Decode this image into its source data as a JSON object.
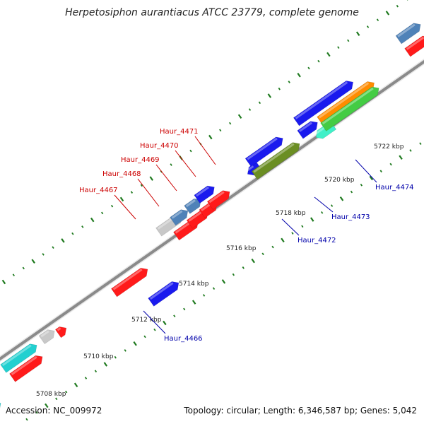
{
  "title": "Herpetosiphon aurantiacus ATCC 23779, complete genome",
  "footer": {
    "accession": "Accession: NC_009972",
    "topology": "Topology: circular; Length: 6,346,587 bp; Genes: 5,042"
  },
  "colors": {
    "backbone": "#8a8a8a",
    "tick": "#1f7a1f",
    "red_label": "#cc0000",
    "blue_label": "#0000aa"
  },
  "ticks": {
    "unit": "kbp",
    "labels": [
      "5708 kbp",
      "5710 kbp",
      "5712 kbp",
      "5714 kbp",
      "5716 kbp",
      "5718 kbp",
      "5720 kbp",
      "5722 kbp"
    ]
  },
  "genes_upper": [
    {
      "name": "Haur_4467",
      "color": "red"
    },
    {
      "name": "Haur_4468",
      "color": "red"
    },
    {
      "name": "Haur_4469",
      "color": "red"
    },
    {
      "name": "Haur_4470",
      "color": "red"
    },
    {
      "name": "Haur_4471",
      "color": "red"
    }
  ],
  "genes_lower": [
    {
      "name": "Haur_4466",
      "color": "blue"
    },
    {
      "name": "Haur_4472",
      "color": "blue"
    },
    {
      "name": "Haur_4473",
      "color": "blue"
    },
    {
      "name": "Haur_4474",
      "color": "blue"
    }
  ]
}
